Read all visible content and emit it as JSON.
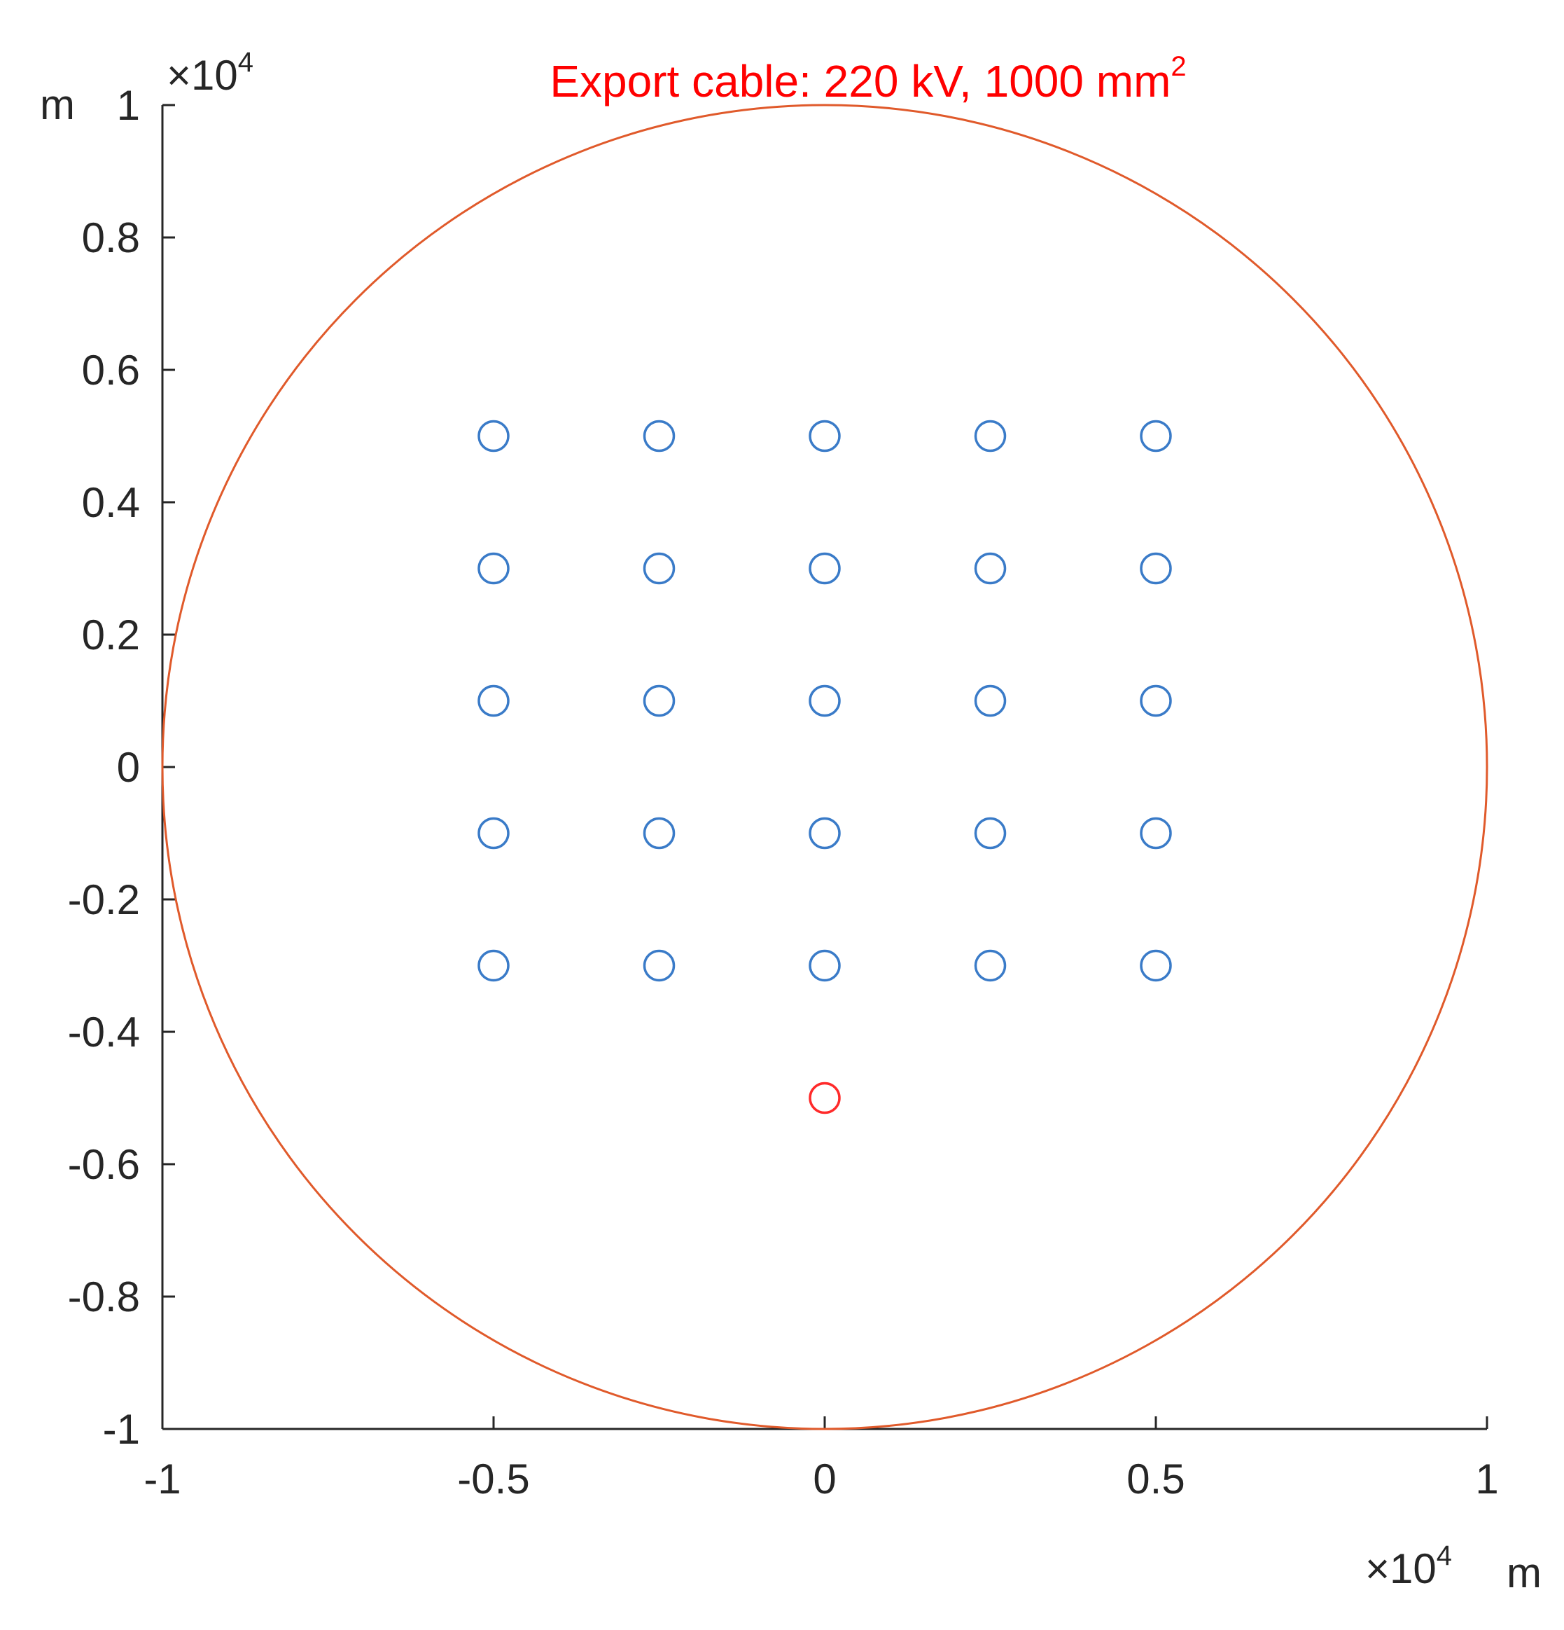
{
  "chart_data": {
    "type": "scatter",
    "title": "Export cable: 220 kV, 1000 mm",
    "title_superscript": "2",
    "title_color": "#ff0000",
    "xlim": [
      -1,
      1
    ],
    "ylim": [
      -1,
      1
    ],
    "x_multiplier_base": "×10",
    "x_multiplier_exponent": "4",
    "y_multiplier_base": "×10",
    "y_multiplier_exponent": "4",
    "xunit": "m",
    "yunit": "m",
    "xticks": [
      -1,
      -0.5,
      0,
      0.5,
      1
    ],
    "xtick_labels": [
      "-1",
      "-0.5",
      "0",
      "0.5",
      "1"
    ],
    "yticks": [
      1,
      0.8,
      0.6,
      0.4,
      0.2,
      0,
      -0.2,
      -0.4,
      -0.6,
      -0.8,
      -1
    ],
    "ytick_labels": [
      "1",
      "0.8",
      "0.6",
      "0.4",
      "0.2",
      "0",
      "-0.2",
      "-0.4",
      "-0.6",
      "-0.8",
      "-1"
    ],
    "grid": false,
    "boundary_circle": {
      "center": [
        0,
        0
      ],
      "radius": 1,
      "color": "#e05a2b"
    },
    "series": [
      {
        "marker": "circle-open",
        "color": "#3a7bc8",
        "points": [
          [
            -0.5,
            0.5
          ],
          [
            -0.25,
            0.5
          ],
          [
            0,
            0.5
          ],
          [
            0.25,
            0.5
          ],
          [
            0.5,
            0.5
          ],
          [
            -0.5,
            0.3
          ],
          [
            -0.25,
            0.3
          ],
          [
            0,
            0.3
          ],
          [
            0.25,
            0.3
          ],
          [
            0.5,
            0.3
          ],
          [
            -0.5,
            0.1
          ],
          [
            -0.25,
            0.1
          ],
          [
            0,
            0.1
          ],
          [
            0.25,
            0.1
          ],
          [
            0.5,
            0.1
          ],
          [
            -0.5,
            -0.1
          ],
          [
            -0.25,
            -0.1
          ],
          [
            0,
            -0.1
          ],
          [
            0.25,
            -0.1
          ],
          [
            0.5,
            -0.1
          ],
          [
            -0.5,
            -0.3
          ],
          [
            -0.25,
            -0.3
          ],
          [
            0,
            -0.3
          ],
          [
            0.25,
            -0.3
          ],
          [
            0.5,
            -0.3
          ]
        ]
      },
      {
        "marker": "circle-open",
        "color": "#ff2a2a",
        "points": [
          [
            0,
            -0.5
          ]
        ]
      }
    ]
  }
}
